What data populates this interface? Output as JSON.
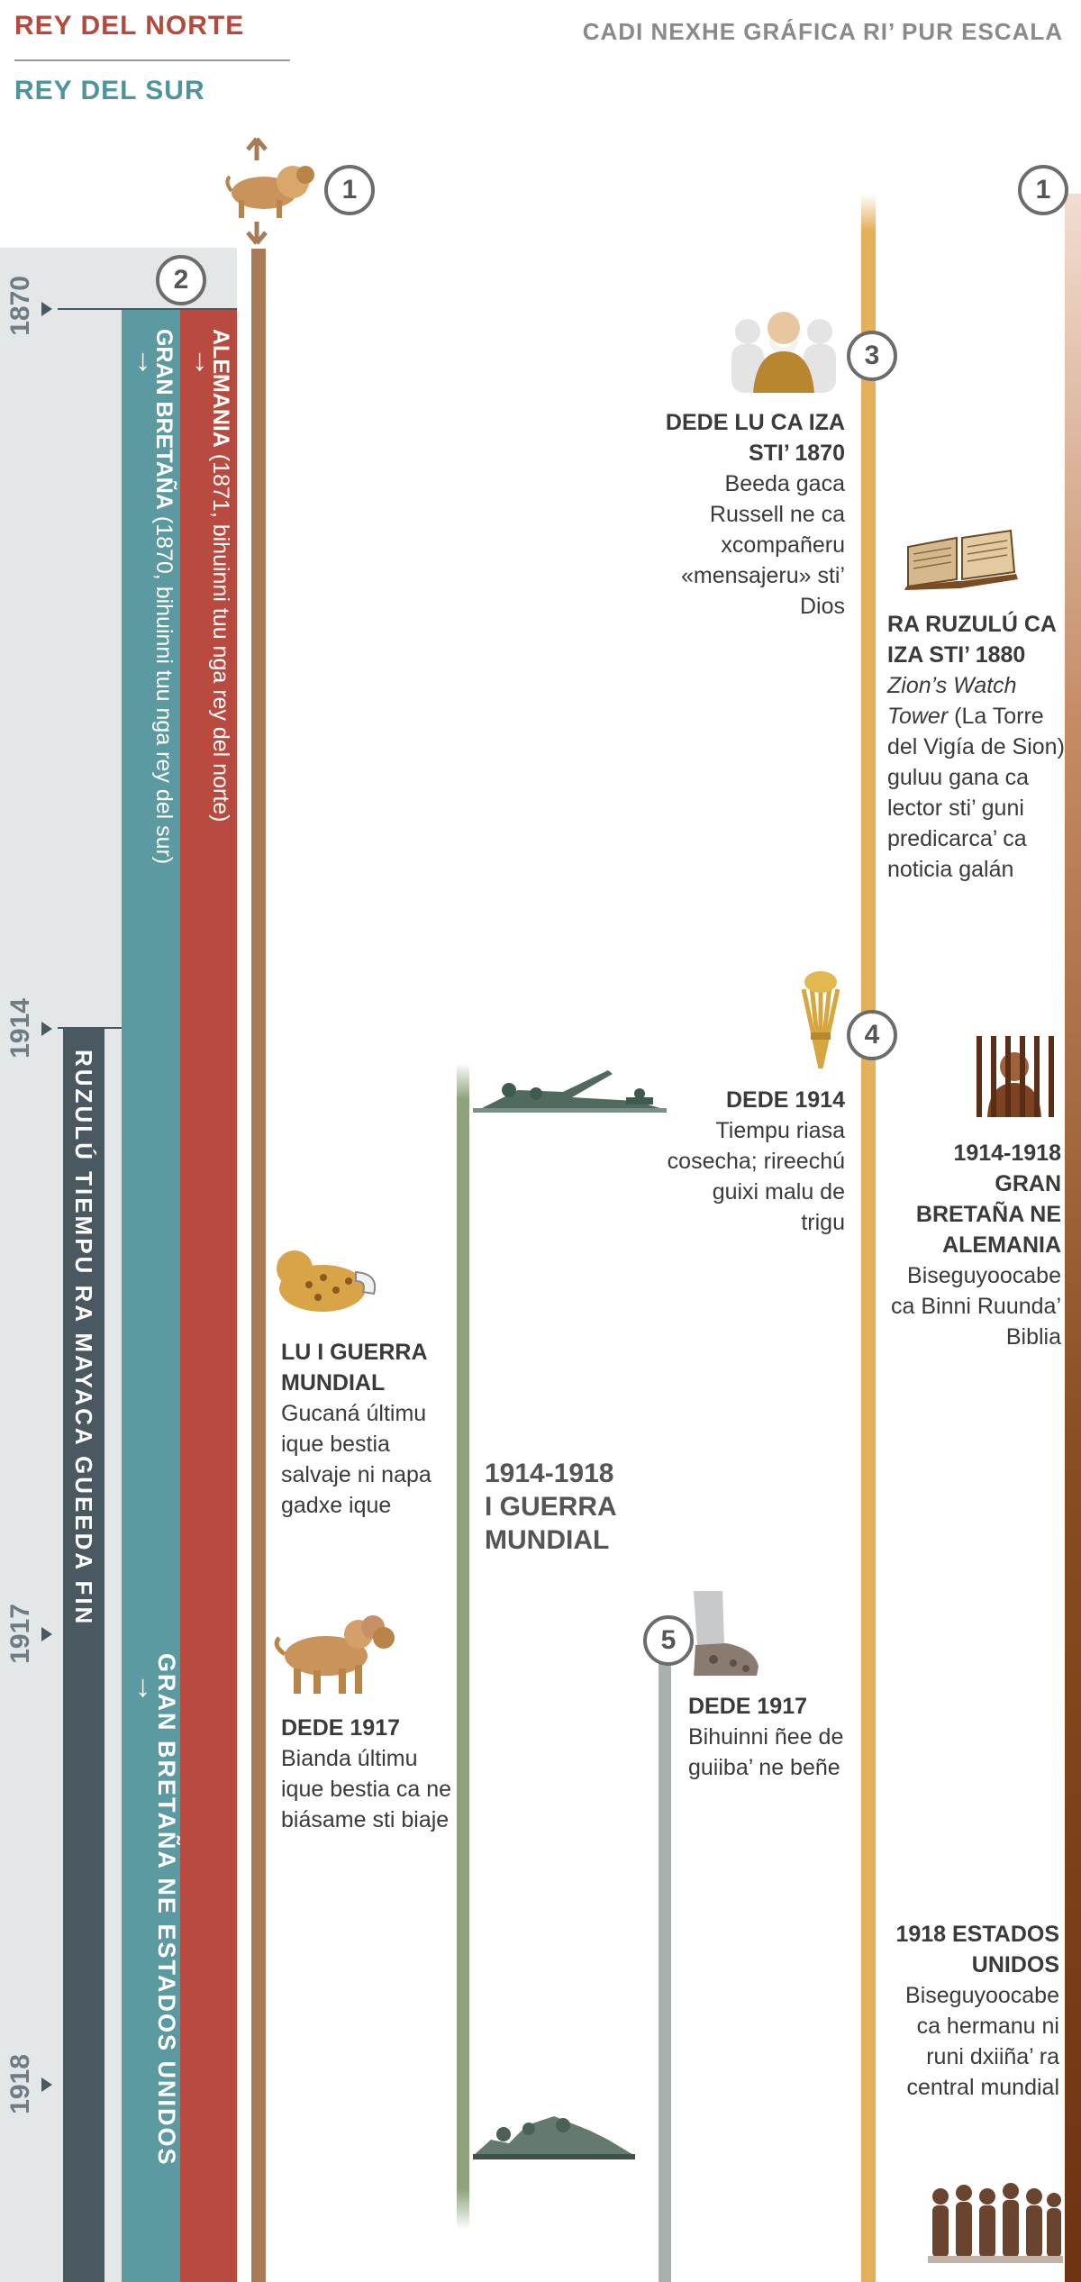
{
  "header": {
    "north_king": "REY DEL NORTE",
    "south_king": "REY DEL SUR",
    "scale_note": "CADI NEXHE GRÁFICA RI’ PUR ESCALA"
  },
  "years": [
    "1870",
    "1914",
    "1917",
    "1918"
  ],
  "bars": {
    "alemania_bold": "ALEMANIA",
    "alemania_rest": " (1871, bihuinni tuu nga rey del norte)",
    "britain_bold": "GRAN BRETAÑA",
    "britain_rest": " (1870, bihuinni tuu nga rey del sur)",
    "britain_us": "GRAN BRETAÑA NE ESTADOS UNIDOS",
    "last_time": "RUZULÚ TIEMPU RA MAYACA GUEEDA FIN",
    "arrow": "↓"
  },
  "markers": {
    "m1a": "1",
    "m1b": "1",
    "m2": "2",
    "m3": "3",
    "m4": "4",
    "m5": "5"
  },
  "events": {
    "e1870": {
      "title": "DEDE LU CA IZA STI’ 1870",
      "body": "Beeda gaca Russell ne ca xcompañeru «mensajeru» sti’ Dios"
    },
    "e1880": {
      "title": "RA RUZULÚ CA IZA STI’ 1880",
      "italic": "Zion’s Watch Tower",
      "body": " (La Torre del Vigía de Sion) guluu gana ca lector sti’ guni predi­carca’ ca noti­cia galán"
    },
    "e1914": {
      "title": "DEDE 1914",
      "body": "Tiempu riasa cosecha; rireechú guixi malu de trigu"
    },
    "e1914_1918": {
      "title": "1914-1918 GRAN BRETAÑA NE ALEMANIA",
      "body": "Biseguyoocabe ca Binni Ruu­nda’ Biblia"
    },
    "ww1_beast": {
      "title": "LU I GUERRA MUNDIAL",
      "body": "Gucaná últimu ique bestia salvaje ni napa gadxe ique"
    },
    "war_label": "1914-1918 I GUERRA MUNDIAL",
    "e1917_beast": {
      "title": "DEDE 1917",
      "body": "Bianda últimu ique bestia ca ne biásame sti biaje"
    },
    "e1917_feet": {
      "title": "DEDE 1917",
      "body": "Bihuinni ñee de guiiba’ ne beñe"
    },
    "e1918": {
      "title": "1918 ESTADOS UNIDOS",
      "body": "Biseguyoocabe ca hermanu ni runi dxiiña’ ra central mundial"
    }
  },
  "colors": {
    "north": "#b94a3f",
    "south": "#5b9aa1",
    "dark": "#4a5961",
    "gold": "#e5b05c",
    "rust": "#8a4d22"
  }
}
